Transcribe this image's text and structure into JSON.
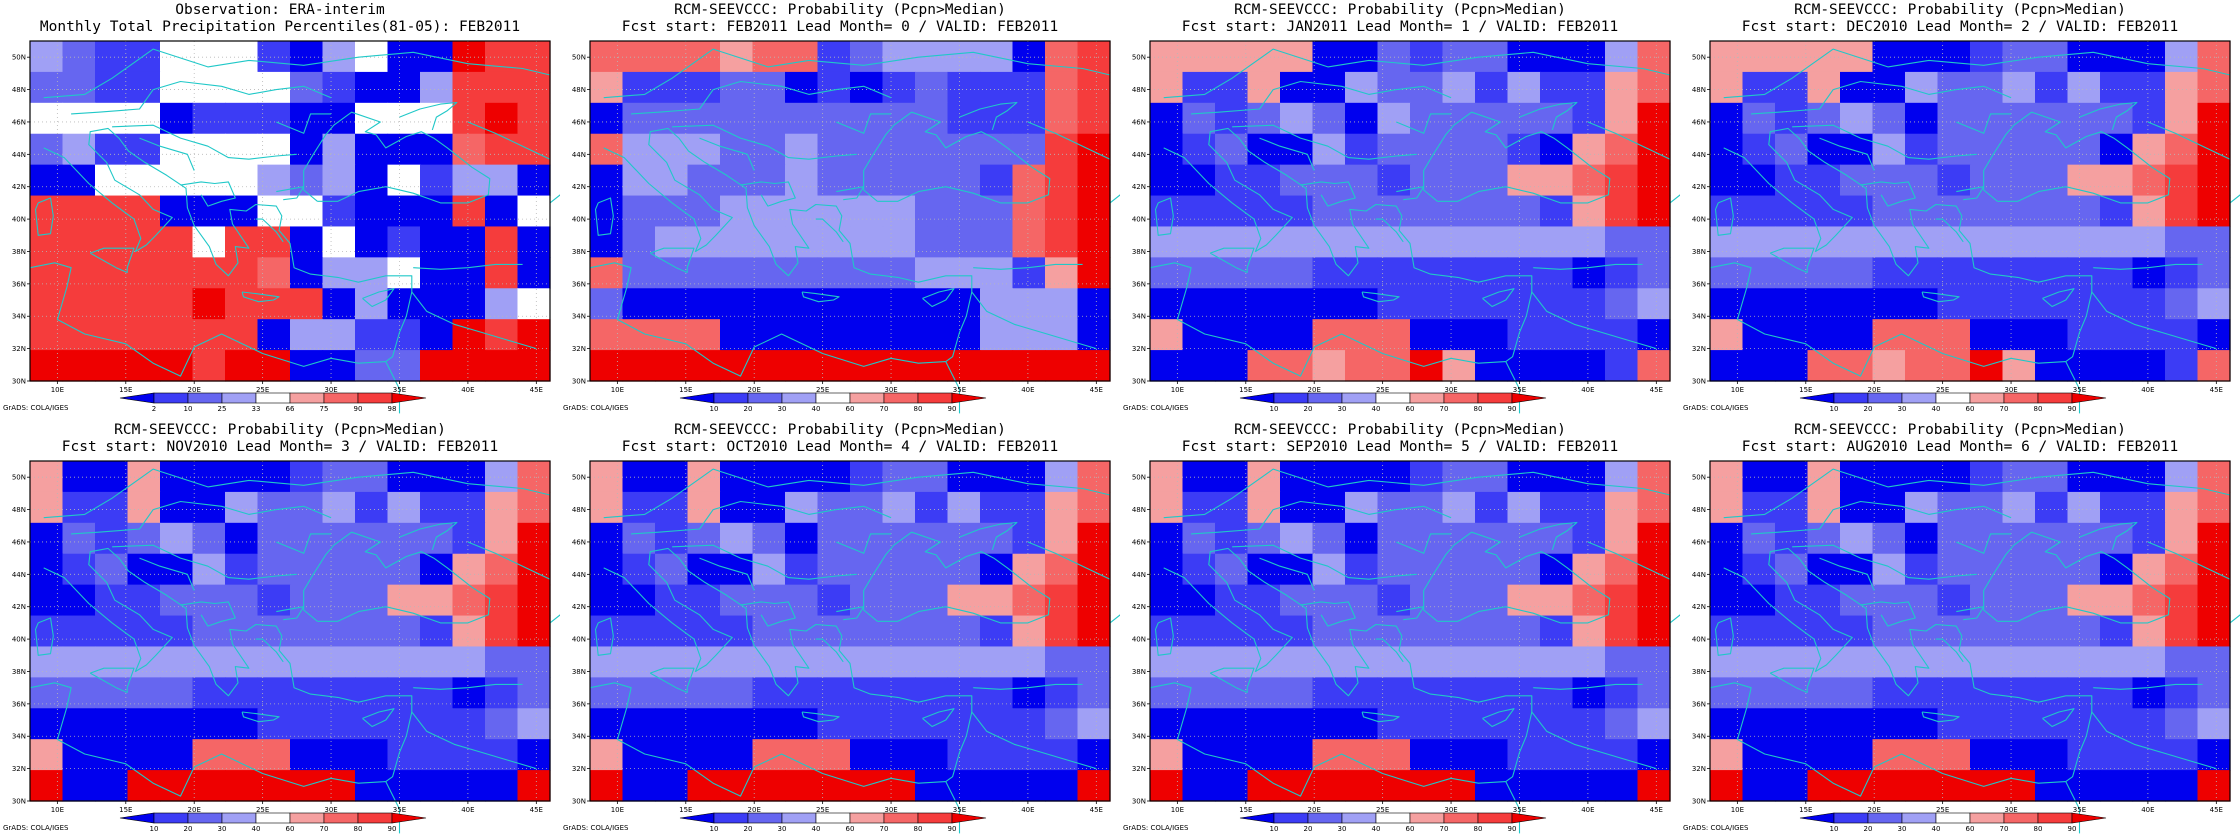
{
  "palette": {
    "blue3": "#0000ee",
    "blue2": "#3c3cf5",
    "blue1": "#6666f0",
    "blue0": "#a0a0f5",
    "white": "#ffffff",
    "red0": "#f5a0a0",
    "red1": "#f56666",
    "red2": "#f53c3c",
    "red3": "#ee0000",
    "coast": "#20c8c8",
    "grid": "#b8b8b8"
  },
  "axes": {
    "lon_labels": [
      "10E",
      "15E",
      "20E",
      "25E",
      "30E",
      "35E",
      "40E",
      "45E"
    ],
    "lat_labels": [
      "30N",
      "32N",
      "34N",
      "36N",
      "38N",
      "40N",
      "42N",
      "44N",
      "46N",
      "48N",
      "50N"
    ]
  },
  "credit": "GrADS: COLA/IGES",
  "panels": [
    {
      "title1": "Observation: ERA-interim",
      "title2": "Monthly Total Precipitation Percentiles(81-05): FEB2011",
      "cb_labels": [
        "2",
        "10",
        "25",
        "33",
        "66",
        "75",
        "90",
        "98"
      ],
      "cb_kind": "obs"
    },
    {
      "title1": "RCM-SEEVCCC: Probability (Pcpn>Median)",
      "title2": "Fcst start: FEB2011  Lead Month= 0 / VALID: FEB2011",
      "cb_labels": [
        "10",
        "20",
        "30",
        "40",
        "60",
        "70",
        "80",
        "90"
      ],
      "cb_kind": "prob"
    },
    {
      "title1": "RCM-SEEVCCC: Probability (Pcpn>Median)",
      "title2": "Fcst start: JAN2011  Lead Month= 1 / VALID: FEB2011",
      "cb_labels": [
        "10",
        "20",
        "30",
        "40",
        "60",
        "70",
        "80",
        "90"
      ],
      "cb_kind": "prob"
    },
    {
      "title1": "RCM-SEEVCCC: Probability (Pcpn>Median)",
      "title2": "Fcst start: DEC2010  Lead Month= 2 / VALID: FEB2011",
      "cb_labels": [
        "10",
        "20",
        "30",
        "40",
        "60",
        "70",
        "80",
        "90"
      ],
      "cb_kind": "prob"
    },
    {
      "title1": "RCM-SEEVCCC: Probability (Pcpn>Median)",
      "title2": "Fcst start: NOV2010  Lead Month= 3 / VALID: FEB2011",
      "cb_labels": [
        "10",
        "20",
        "30",
        "40",
        "60",
        "70",
        "80",
        "90"
      ],
      "cb_kind": "prob"
    },
    {
      "title1": "RCM-SEEVCCC: Probability (Pcpn>Median)",
      "title2": "Fcst start: OCT2010  Lead Month= 4 / VALID: FEB2011",
      "cb_labels": [
        "10",
        "20",
        "30",
        "40",
        "60",
        "70",
        "80",
        "90"
      ],
      "cb_kind": "prob"
    },
    {
      "title1": "RCM-SEEVCCC: Probability (Pcpn>Median)",
      "title2": "Fcst start: SEP2010  Lead Month= 5 / VALID: FEB2011",
      "cb_labels": [
        "10",
        "20",
        "30",
        "40",
        "60",
        "70",
        "80",
        "90"
      ],
      "cb_kind": "prob"
    },
    {
      "title1": "RCM-SEEVCCC: Probability (Pcpn>Median)",
      "title2": "Fcst start: AUG2010  Lead Month= 6 / VALID: FEB2011",
      "cb_labels": [
        "10",
        "20",
        "30",
        "40",
        "60",
        "70",
        "80",
        "90"
      ],
      "cb_kind": "prob"
    }
  ],
  "chart_data": [
    {
      "type": "heatmap",
      "title": "Observation: ERA-interim",
      "subtitle": "Monthly Total Precipitation Percentiles(81-05): FEB2011",
      "xlim": [
        8,
        46
      ],
      "ylim": [
        30,
        51
      ],
      "legend": [
        "2",
        "10",
        "25",
        "33",
        "66",
        "75",
        "90",
        "98"
      ],
      "grid": [
        "2211100000000000",
        "1122211022000000",
        "0220000100210000",
        "0000210011121000",
        "0000001110200310",
        "2201110000002100",
        "0021111101000100",
        "0000102210000000",
        "1011210111101201",
        "2211200000201201",
        "2100000000000000"
      ]
    },
    {
      "type": "heatmap",
      "title": "RCM-SEEVCCC: Probability (Pcpn>Median)",
      "subtitle": "Fcst start: FEB2011  Lead Month= 0 / VALID: FEB2011",
      "xlim": [
        8,
        46
      ],
      "ylim": [
        30,
        51
      ],
      "legend": [
        "10",
        "20",
        "30",
        "40",
        "60",
        "70",
        "80",
        "90"
      ],
      "grid": [
        "1111111000001112",
        "1111111111111112",
        "2221111111111222",
        "1122222122222221",
        "1001110011102221",
        "0110222221110111",
        "1211011111111101",
        "2111110000110001",
        "0101111000111011",
        "2221101111101111",
        "2222222222222222"
      ]
    },
    {
      "type": "heatmap",
      "title": "RCM-SEEVCCC: Probability (Pcpn>Median)",
      "subtitle": "Fcst start: JAN2011  Lead Month= 1 / VALID: FEB2011",
      "xlim": [
        8,
        46
      ],
      "ylim": [
        30,
        51
      ],
      "legend": [
        "10",
        "20",
        "30",
        "40",
        "60",
        "70",
        "80",
        "90"
      ],
      "grid": [
        "0011111000001110",
        "0121112121122111",
        "0121112121111121",
        "1122111111111111",
        "0022110000101112",
        "0112111111111111",
        "1110000000011111",
        "1222222222222222",
        "2222222222222222",
        "0000000000000000",
        "2222222222222222"
      ]
    },
    {
      "type": "heatmap",
      "title": "RCM-SEEVCCC: Probability (Pcpn>Median)",
      "subtitle": "Fcst start: DEC2010  Lead Month= 2 / VALID: FEB2011",
      "xlim": [
        8,
        46
      ],
      "ylim": [
        30,
        51
      ],
      "legend": [
        "10",
        "20",
        "30",
        "40",
        "60",
        "70",
        "80",
        "90"
      ],
      "grid": [
        "1011211011101011",
        "1111111111111111",
        "1112121111111111",
        "1122111122111111",
        "0112111111111111",
        "1111111111111111",
        "1110110000011111",
        "1122222222222222",
        "2222222222222222",
        "0000000000000000",
        "2222222222222222"
      ]
    },
    {
      "type": "heatmap",
      "title": "RCM-SEEVCCC: Probability (Pcpn>Median)",
      "subtitle": "Fcst start: NOV2010  Lead Month= 3 / VALID: FEB2011",
      "xlim": [
        8,
        46
      ],
      "ylim": [
        30,
        51
      ],
      "legend": [
        "10",
        "20",
        "30",
        "40",
        "60",
        "70",
        "80",
        "90"
      ],
      "grid": [
        "0000111000000110",
        "0011111111111111",
        "1011111111111111",
        "1111111111111111",
        "0011111111111111",
        "1111111111111111",
        "1111000000000111",
        "1111111111111111",
        "1111111111111111",
        "0000000000000000",
        "1111111111111111"
      ]
    },
    {
      "type": "heatmap",
      "title": "RCM-SEEVCCC: Probability (Pcpn>Median)",
      "subtitle": "Fcst start: OCT2010  Lead Month= 4 / VALID: FEB2011",
      "xlim": [
        8,
        46
      ],
      "ylim": [
        30,
        51
      ],
      "legend": [
        "10",
        "20",
        "30",
        "40",
        "60",
        "70",
        "80",
        "90"
      ],
      "grid": [
        "0000011100000110",
        "0011111111111111",
        "1011111111111111",
        "1111111111111111",
        "0011111111111111",
        "1111111111111111",
        "1111000000000111",
        "1111111111111111",
        "1111111111111111",
        "0000000000000000",
        "1111111111111111"
      ]
    },
    {
      "type": "heatmap",
      "title": "RCM-SEEVCCC: Probability (Pcpn>Median)",
      "subtitle": "Fcst start: SEP2010  Lead Month= 5 / VALID: FEB2011",
      "xlim": [
        8,
        46
      ],
      "ylim": [
        30,
        51
      ],
      "legend": [
        "10",
        "20",
        "30",
        "40",
        "60",
        "70",
        "80",
        "90"
      ],
      "grid": [
        "0000011100000110",
        "0011111111111111",
        "1011111111111111",
        "1111111111111111",
        "0011111111111111",
        "1111111111111111",
        "1111000000000111",
        "1111111111111111",
        "1111111111111111",
        "0000000000000000",
        "1111111111111111"
      ]
    },
    {
      "type": "heatmap",
      "title": "RCM-SEEVCCC: Probability (Pcpn>Median)",
      "subtitle": "Fcst start: AUG2010  Lead Month= 6 / VALID: FEB2011",
      "xlim": [
        8,
        46
      ],
      "ylim": [
        30,
        51
      ],
      "legend": [
        "10",
        "20",
        "30",
        "40",
        "60",
        "70",
        "80",
        "90"
      ],
      "grid": [
        "0000011100000110",
        "0011111111111111",
        "1011111111111111",
        "1111111111111111",
        "0011111111111111",
        "1111111111111111",
        "1111000000000111",
        "1111111111111111",
        "1111111111111111",
        "0000000000000000",
        "1111111111111111"
      ]
    }
  ]
}
